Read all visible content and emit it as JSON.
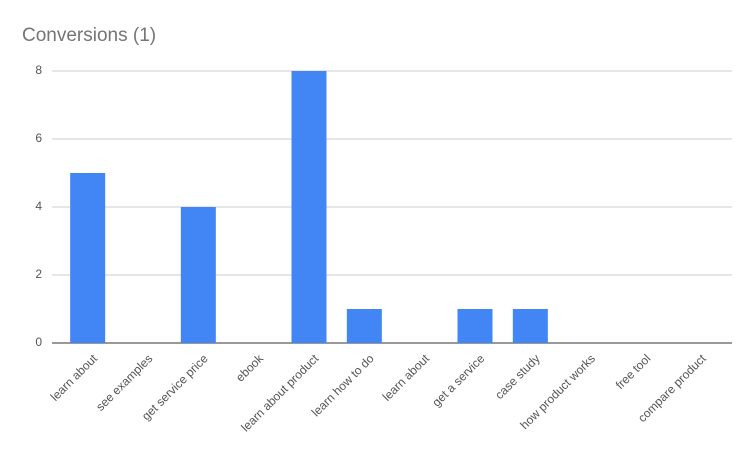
{
  "chart_data": {
    "type": "bar",
    "title": "Conversions (1)",
    "categories": [
      "learn about",
      "see examples",
      "get service price",
      "ebook",
      "learn about product",
      "learn how to do",
      "learn about",
      "get a service",
      "case study",
      "how product works",
      "free tool",
      "compare product"
    ],
    "values": [
      5,
      0,
      4,
      0,
      8,
      1,
      0,
      1,
      1,
      0,
      0,
      0
    ],
    "color": "#4285f4",
    "ylim": [
      0,
      8
    ],
    "yticks": [
      0,
      2,
      4,
      6,
      8
    ],
    "grid": true
  }
}
